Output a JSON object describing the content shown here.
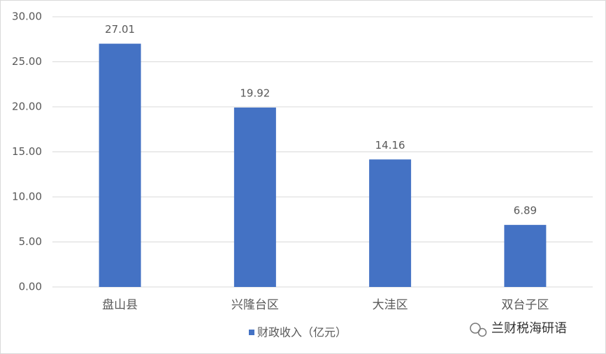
{
  "chart_data": {
    "type": "bar",
    "categories": [
      "盘山县",
      "兴隆台区",
      "大洼区",
      "双台子区"
    ],
    "series": [
      {
        "name": "财政收入（亿元）",
        "color": "#4472c4",
        "values": [
          27.01,
          19.92,
          14.16,
          6.89
        ]
      }
    ],
    "ylim": [
      0,
      30
    ],
    "yticks": [
      {
        "value": 0,
        "label": "0.00"
      },
      {
        "value": 5,
        "label": "5.00"
      },
      {
        "value": 10,
        "label": "10.00"
      },
      {
        "value": 15,
        "label": "15.00"
      },
      {
        "value": 20,
        "label": "20.00"
      },
      {
        "value": 25,
        "label": "25.00"
      },
      {
        "value": 30,
        "label": "30.00"
      }
    ],
    "grid": true,
    "legend": "bottom",
    "annotation": "兰财税海研语"
  }
}
